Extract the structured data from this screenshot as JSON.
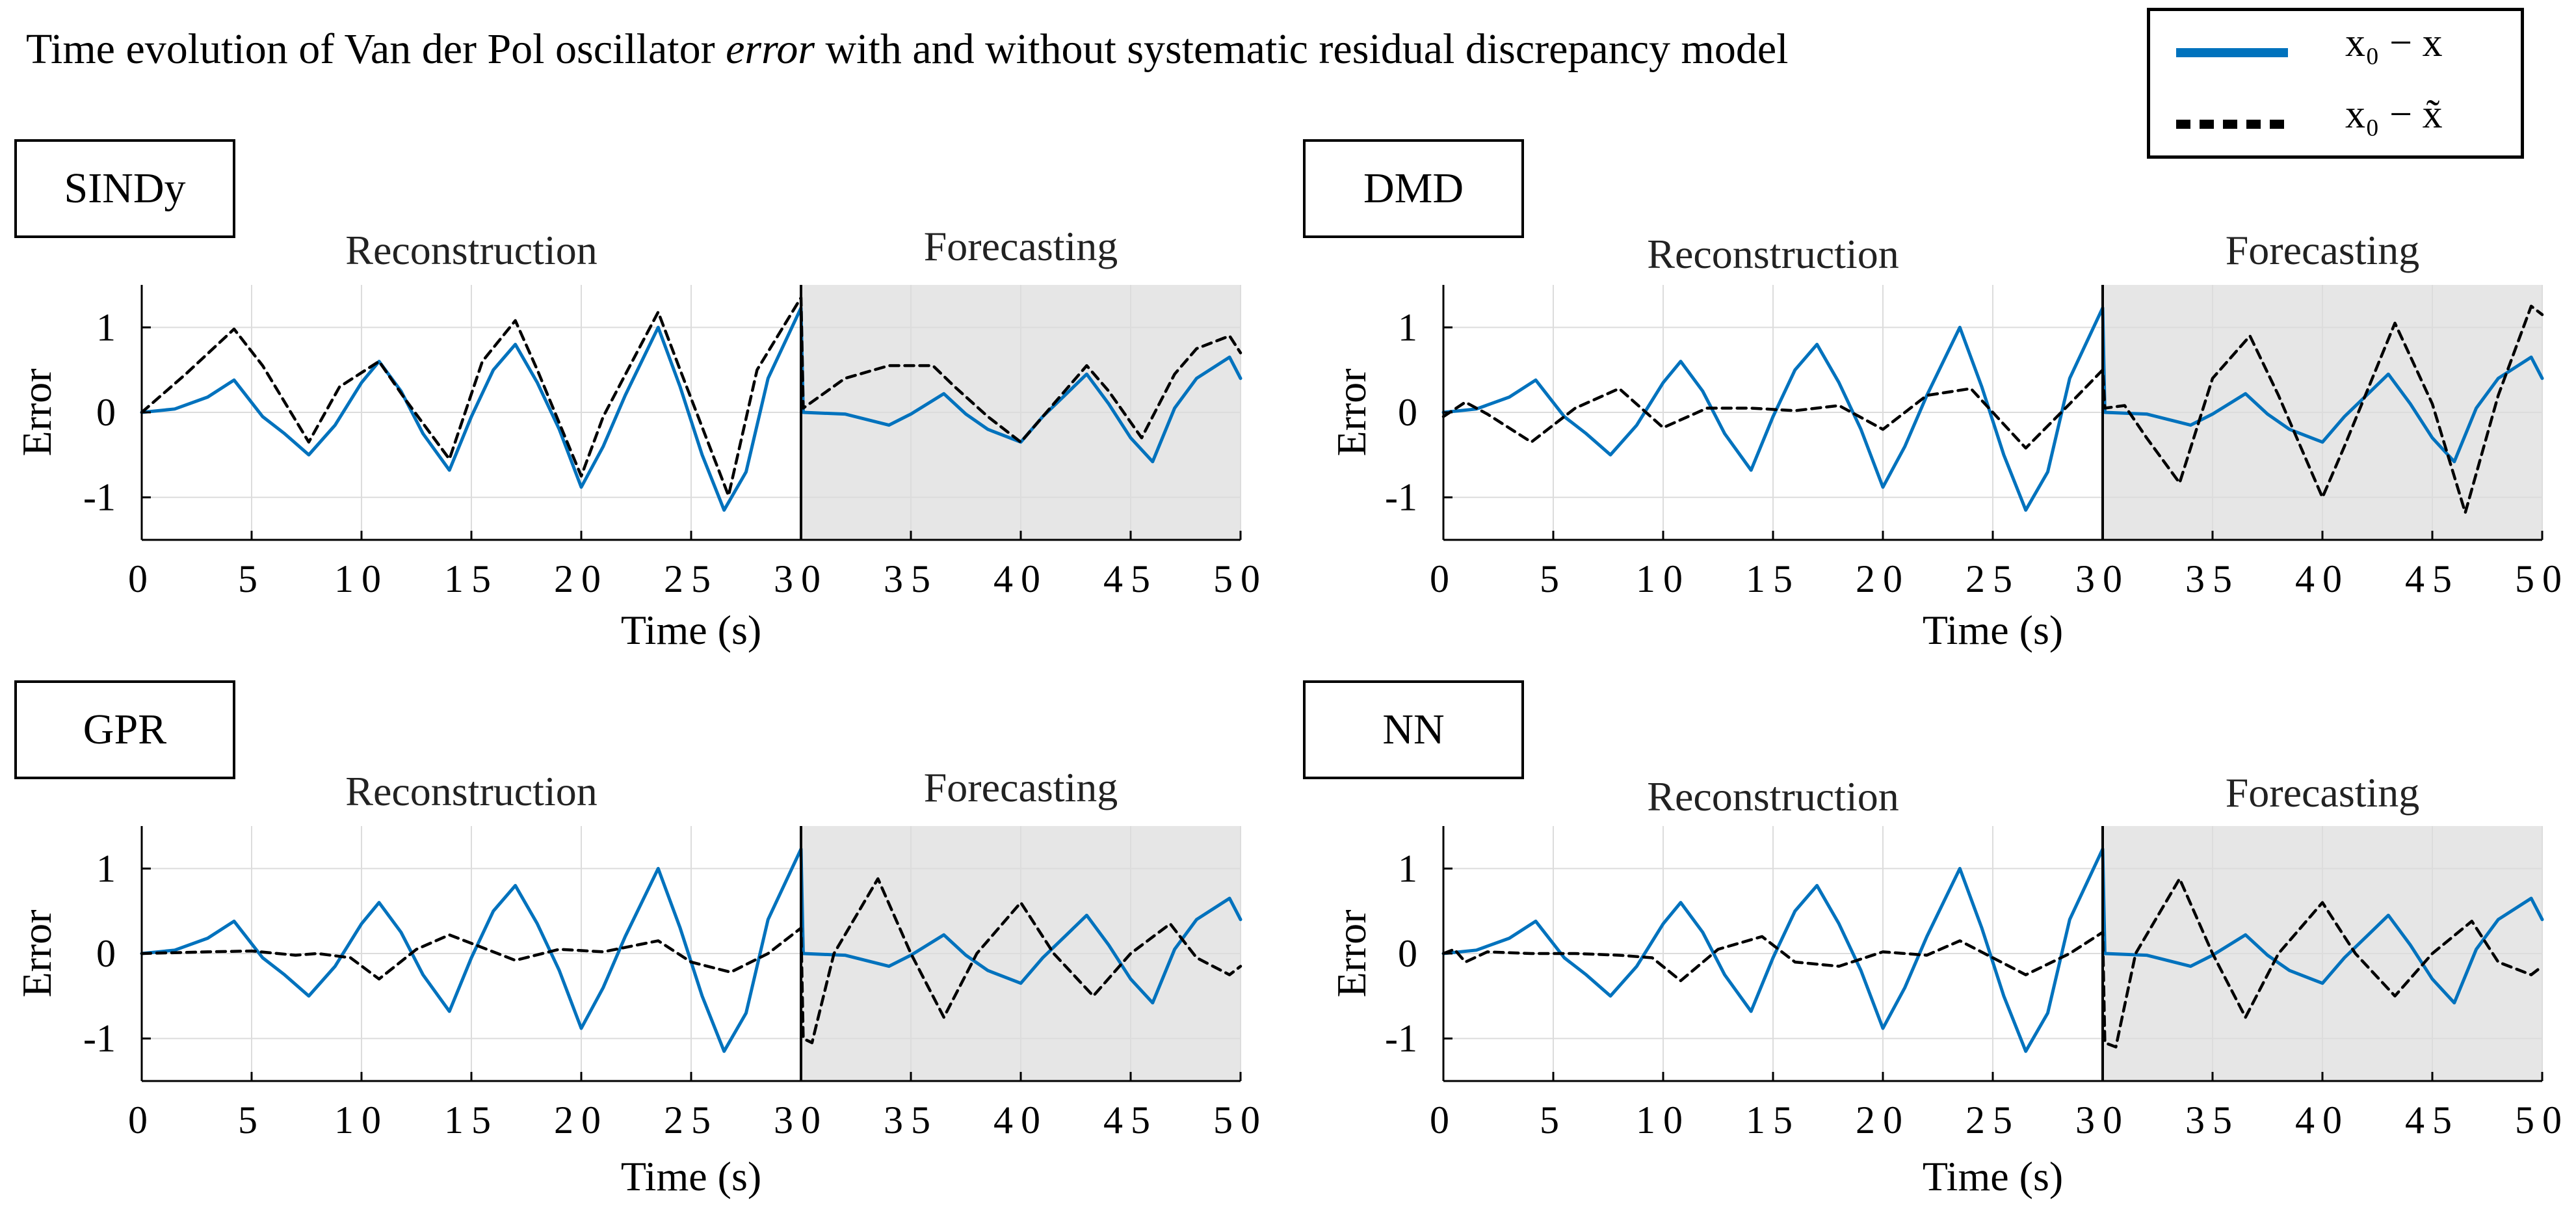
{
  "figure_title_parts": {
    "before": "Time evolution of Van der Pol oscillator ",
    "emphasis": "error",
    "after": " with and without systematic residual discrepancy model"
  },
  "legend": {
    "entries": [
      {
        "name": "x₀ − x",
        "style": "solid",
        "color": "#0072BD"
      },
      {
        "name": "x₀ − x̃",
        "style": "dashed",
        "color": "#000000"
      }
    ]
  },
  "colors": {
    "error_line": "#0072BD",
    "discrepancy_line": "#000000",
    "forecast_shade": "#e6e6e6",
    "grid": "#dcdcdc"
  },
  "chart_data": [
    {
      "type": "line",
      "panel": "SINDy",
      "section_labels": [
        "Reconstruction",
        "Forecasting"
      ],
      "split_time": 30,
      "xlabel": "Time (s)",
      "ylabel": "Error",
      "xlim": [
        0,
        50
      ],
      "ylim": [
        -1.5,
        1.5
      ],
      "xticks": [
        0,
        5,
        10,
        15,
        20,
        25,
        30,
        35,
        40,
        45,
        50
      ],
      "yticks": [
        1,
        0,
        -1
      ],
      "grid": true,
      "series": [
        {
          "name": "x₀ − x",
          "style": "solid",
          "x": [
            0,
            1.5,
            3,
            4.2,
            5.5,
            6.5,
            7.6,
            8.8,
            10,
            10.8,
            11.8,
            12.8,
            14,
            15,
            16,
            17,
            18,
            19,
            20,
            21,
            22,
            23.5,
            24.5,
            25.5,
            26.5,
            27.5,
            28.5,
            30,
            30.1,
            32,
            34,
            35,
            36.5,
            37.5,
            38.5,
            40,
            41,
            42,
            43,
            44,
            45,
            46,
            47,
            48,
            49.5,
            50
          ],
          "y": [
            0,
            0.04,
            0.18,
            0.38,
            -0.05,
            -0.25,
            -0.5,
            -0.15,
            0.35,
            0.6,
            0.25,
            -0.25,
            -0.68,
            -0.05,
            0.5,
            0.8,
            0.35,
            -0.2,
            -0.88,
            -0.4,
            0.2,
            1.0,
            0.3,
            -0.5,
            -1.15,
            -0.7,
            0.4,
            1.23,
            0,
            -0.02,
            -0.15,
            -0.02,
            0.22,
            -0.02,
            -0.2,
            -0.35,
            -0.05,
            0.2,
            0.45,
            0.1,
            -0.3,
            -0.58,
            0.05,
            0.4,
            0.65,
            0.4
          ]
        },
        {
          "name": "x₀ − x̃",
          "style": "dashed",
          "x": [
            0,
            2,
            4.2,
            5.5,
            7.6,
            9,
            10.8,
            12,
            14,
            15.5,
            17,
            18,
            20,
            21,
            23.5,
            24.5,
            26.7,
            28,
            30,
            30.1,
            32,
            34,
            36,
            37,
            38.5,
            40,
            41.5,
            43,
            44,
            45.5,
            47,
            48,
            49.5,
            50
          ],
          "y": [
            0,
            0.45,
            0.98,
            0.55,
            -0.35,
            0.3,
            0.6,
            0.15,
            -0.55,
            0.6,
            1.08,
            0.5,
            -0.75,
            -0.05,
            1.18,
            0.5,
            -0.98,
            0.5,
            1.35,
            0.05,
            0.4,
            0.55,
            0.55,
            0.3,
            -0.05,
            -0.35,
            0.1,
            0.55,
            0.25,
            -0.3,
            0.45,
            0.75,
            0.9,
            0.7
          ]
        }
      ]
    },
    {
      "type": "line",
      "panel": "DMD",
      "section_labels": [
        "Reconstruction",
        "Forecasting"
      ],
      "split_time": 30,
      "xlabel": "Time (s)",
      "ylabel": "Error",
      "xlim": [
        0,
        50
      ],
      "ylim": [
        -1.5,
        1.5
      ],
      "xticks": [
        0,
        5,
        10,
        15,
        20,
        25,
        30,
        35,
        40,
        45,
        50
      ],
      "yticks": [
        1,
        0,
        -1
      ],
      "grid": true,
      "series": [
        {
          "name": "x₀ − x",
          "style": "solid",
          "x": [
            0,
            1.5,
            3,
            4.2,
            5.5,
            6.5,
            7.6,
            8.8,
            10,
            10.8,
            11.8,
            12.8,
            14,
            15,
            16,
            17,
            18,
            19,
            20,
            21,
            22,
            23.5,
            24.5,
            25.5,
            26.5,
            27.5,
            28.5,
            30,
            30.1,
            32,
            34,
            35,
            36.5,
            37.5,
            38.5,
            40,
            41,
            42,
            43,
            44,
            45,
            46,
            47,
            48,
            49.5,
            50
          ],
          "y": [
            0,
            0.04,
            0.18,
            0.38,
            -0.05,
            -0.25,
            -0.5,
            -0.15,
            0.35,
            0.6,
            0.25,
            -0.25,
            -0.68,
            -0.05,
            0.5,
            0.8,
            0.35,
            -0.2,
            -0.88,
            -0.4,
            0.2,
            1.0,
            0.3,
            -0.5,
            -1.15,
            -0.7,
            0.4,
            1.23,
            0,
            -0.02,
            -0.15,
            -0.02,
            0.22,
            -0.02,
            -0.2,
            -0.35,
            -0.05,
            0.2,
            0.45,
            0.1,
            -0.3,
            -0.58,
            0.05,
            0.4,
            0.65,
            0.4
          ]
        },
        {
          "name": "x₀ − x̃",
          "style": "dashed",
          "x": [
            0,
            1,
            2,
            4,
            6,
            8,
            10,
            12,
            14,
            16,
            18,
            20,
            22,
            24,
            26.5,
            28.5,
            30,
            30.1,
            31,
            32,
            33.5,
            35,
            36.7,
            38,
            40,
            41,
            43.3,
            45,
            46.5,
            48,
            49.5,
            50
          ],
          "y": [
            -0.05,
            0.12,
            -0.02,
            -0.35,
            0.05,
            0.28,
            -0.18,
            0.05,
            0.05,
            0.02,
            0.08,
            -0.2,
            0.2,
            0.28,
            -0.42,
            0.1,
            0.5,
            0.05,
            0.08,
            -0.3,
            -0.83,
            0.4,
            0.9,
            0.2,
            -1.0,
            -0.4,
            1.05,
            0.1,
            -1.18,
            0.2,
            1.25,
            1.15
          ]
        }
      ]
    },
    {
      "type": "line",
      "panel": "GPR",
      "section_labels": [
        "Reconstruction",
        "Forecasting"
      ],
      "split_time": 30,
      "xlabel": "Time (s)",
      "ylabel": "Error",
      "xlim": [
        0,
        50
      ],
      "ylim": [
        -1.5,
        1.5
      ],
      "xticks": [
        0,
        5,
        10,
        15,
        20,
        25,
        30,
        35,
        40,
        45,
        50
      ],
      "yticks": [
        1,
        0,
        -1
      ],
      "grid": true,
      "series": [
        {
          "name": "x₀ − x",
          "style": "solid",
          "x": [
            0,
            1.5,
            3,
            4.2,
            5.5,
            6.5,
            7.6,
            8.8,
            10,
            10.8,
            11.8,
            12.8,
            14,
            15,
            16,
            17,
            18,
            19,
            20,
            21,
            22,
            23.5,
            24.5,
            25.5,
            26.5,
            27.5,
            28.5,
            30,
            30.1,
            32,
            34,
            35,
            36.5,
            37.5,
            38.5,
            40,
            41,
            42,
            43,
            44,
            45,
            46,
            47,
            48,
            49.5,
            50
          ],
          "y": [
            0,
            0.04,
            0.18,
            0.38,
            -0.05,
            -0.25,
            -0.5,
            -0.15,
            0.35,
            0.6,
            0.25,
            -0.25,
            -0.68,
            -0.05,
            0.5,
            0.8,
            0.35,
            -0.2,
            -0.88,
            -0.4,
            0.2,
            1.0,
            0.3,
            -0.5,
            -1.15,
            -0.7,
            0.4,
            1.23,
            0,
            -0.02,
            -0.15,
            -0.02,
            0.22,
            -0.02,
            -0.2,
            -0.35,
            -0.05,
            0.2,
            0.45,
            0.1,
            -0.3,
            -0.58,
            0.05,
            0.4,
            0.65,
            0.4
          ]
        },
        {
          "name": "x₀ − x̃",
          "style": "dashed",
          "x": [
            0,
            3,
            5,
            7,
            8,
            9.5,
            10.8,
            12.5,
            14,
            15,
            17,
            19,
            21,
            23.5,
            25,
            26.8,
            28.5,
            30,
            30.1,
            30.5,
            31.5,
            33.5,
            35,
            36.5,
            38,
            40,
            41.5,
            43.3,
            45,
            46.8,
            48,
            49.5,
            50
          ],
          "y": [
            0,
            0.02,
            0.03,
            -0.02,
            0.0,
            -0.05,
            -0.3,
            0.05,
            0.22,
            0.12,
            -0.08,
            0.05,
            0.02,
            0.15,
            -0.1,
            -0.22,
            0.0,
            0.3,
            -1.0,
            -1.05,
            0.0,
            0.88,
            0.0,
            -0.75,
            0.0,
            0.6,
            0.0,
            -0.5,
            0.0,
            0.35,
            -0.05,
            -0.25,
            -0.15
          ]
        }
      ]
    },
    {
      "type": "line",
      "panel": "NN",
      "section_labels": [
        "Reconstruction",
        "Forecasting"
      ],
      "split_time": 30,
      "xlabel": "Time (s)",
      "ylabel": "Error",
      "xlim": [
        0,
        50
      ],
      "ylim": [
        -1.5,
        1.5
      ],
      "xticks": [
        0,
        5,
        10,
        15,
        20,
        25,
        30,
        35,
        40,
        45,
        50
      ],
      "yticks": [
        1,
        0,
        -1
      ],
      "grid": true,
      "series": [
        {
          "name": "x₀ − x",
          "style": "solid",
          "x": [
            0,
            1.5,
            3,
            4.2,
            5.5,
            6.5,
            7.6,
            8.8,
            10,
            10.8,
            11.8,
            12.8,
            14,
            15,
            16,
            17,
            18,
            19,
            20,
            21,
            22,
            23.5,
            24.5,
            25.5,
            26.5,
            27.5,
            28.5,
            30,
            30.1,
            32,
            34,
            35,
            36.5,
            37.5,
            38.5,
            40,
            41,
            42,
            43,
            44,
            45,
            46,
            47,
            48,
            49.5,
            50
          ],
          "y": [
            0,
            0.04,
            0.18,
            0.38,
            -0.05,
            -0.25,
            -0.5,
            -0.15,
            0.35,
            0.6,
            0.25,
            -0.25,
            -0.68,
            -0.05,
            0.5,
            0.8,
            0.35,
            -0.2,
            -0.88,
            -0.4,
            0.2,
            1.0,
            0.3,
            -0.5,
            -1.15,
            -0.7,
            0.4,
            1.23,
            0,
            -0.02,
            -0.15,
            -0.02,
            0.22,
            -0.02,
            -0.2,
            -0.35,
            -0.05,
            0.2,
            0.45,
            0.1,
            -0.3,
            -0.58,
            0.05,
            0.4,
            0.65,
            0.4
          ]
        },
        {
          "name": "x₀ − x̃",
          "style": "dashed",
          "x": [
            0,
            0.5,
            1,
            2,
            4,
            6,
            8,
            9.5,
            10.8,
            12.5,
            14.5,
            16,
            18,
            20,
            22,
            23.5,
            25,
            26.5,
            28.5,
            30,
            30.1,
            30.6,
            31.5,
            33.5,
            35,
            36.5,
            38,
            40,
            41.5,
            43.3,
            45,
            46.8,
            48,
            49.5,
            50
          ],
          "y": [
            0,
            0.05,
            -0.1,
            0.02,
            0.0,
            0.0,
            -0.02,
            -0.05,
            -0.32,
            0.05,
            0.2,
            -0.1,
            -0.15,
            0.02,
            -0.02,
            0.15,
            -0.05,
            -0.25,
            0.0,
            0.25,
            -1.05,
            -1.1,
            0.0,
            0.88,
            0.0,
            -0.75,
            0.0,
            0.6,
            0.0,
            -0.5,
            0.0,
            0.38,
            -0.1,
            -0.25,
            -0.15
          ]
        }
      ]
    }
  ]
}
